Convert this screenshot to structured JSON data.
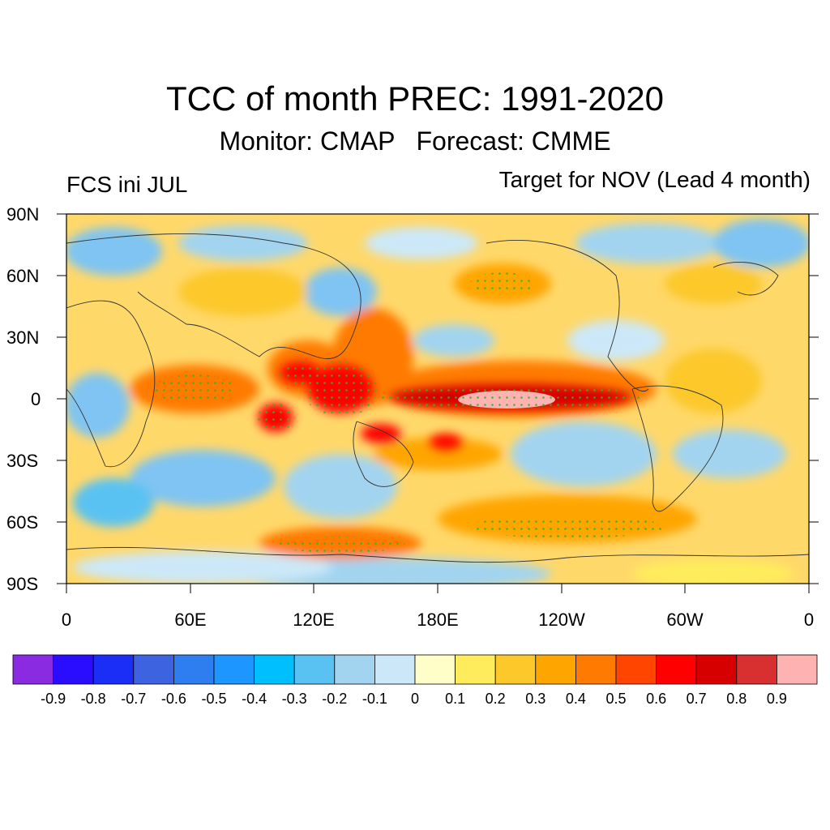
{
  "title": "TCC of month PREC: 1991-2020",
  "subtitle": "Monitor: CMAP   Forecast: CMME",
  "left_label": "FCS ini JUL",
  "right_label": "Target for NOV (Lead 4 month)",
  "lat_labels": [
    "90N",
    "60N",
    "30N",
    "0",
    "30S",
    "60S",
    "90S"
  ],
  "lon_labels": [
    "0",
    "60E",
    "120E",
    "180E",
    "120W",
    "60W",
    "0"
  ],
  "colorbar": {
    "colors": [
      "#8a2be2",
      "#2a0dff",
      "#1a2ef5",
      "#3e63e0",
      "#2e7ef0",
      "#1e96ff",
      "#00bfff",
      "#5ac2f2",
      "#a2d4f0",
      "#cce8f8",
      "#fffdc8",
      "#ffec5c",
      "#fcc82a",
      "#ffa500",
      "#ff7a00",
      "#ff4500",
      "#ff0000",
      "#d70000",
      "#d83030",
      "#ffb2b2"
    ],
    "labels": [
      "-0.9",
      "-0.8",
      "-0.7",
      "-0.6",
      "-0.5",
      "-0.4",
      "-0.3",
      "-0.2",
      "-0.1",
      "0",
      "0.1",
      "0.2",
      "0.3",
      "0.4",
      "0.5",
      "0.6",
      "0.7",
      "0.8",
      "0.9"
    ]
  },
  "map_data": {
    "high_correlation_regions": [
      {
        "name": "equatorial-central-pacific-max",
        "value": 0.9
      },
      {
        "name": "equatorial-pacific-band",
        "value": 0.7
      },
      {
        "name": "maritime-continent",
        "value": 0.7
      },
      {
        "name": "eastern-indian-ocean",
        "value": 0.6
      },
      {
        "name": "southern-ocean-band",
        "value": 0.5
      }
    ]
  }
}
